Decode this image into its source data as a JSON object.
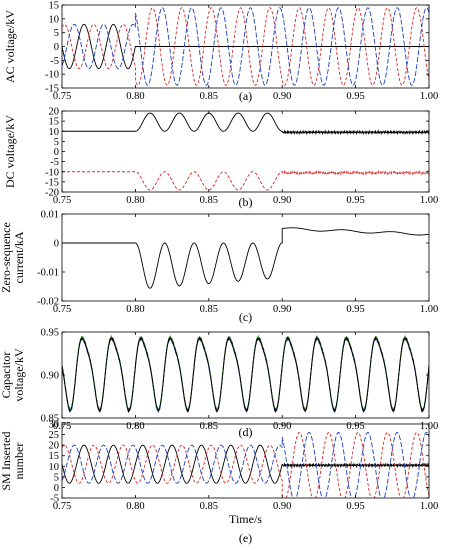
{
  "chart_data": [
    {
      "id": "a",
      "type": "line",
      "ylabel": "AC voltage/kV",
      "panel_label": "(a)",
      "xlim": [
        0.75,
        1.0
      ],
      "ylim": [
        -15,
        15
      ],
      "yticks": [
        -15,
        -10,
        -5,
        0,
        5,
        10,
        15
      ],
      "xticks": [
        0.75,
        0.8,
        0.85,
        0.9,
        0.95,
        1.0
      ],
      "xtick_labels": [
        "0.75",
        "0.80",
        "0.85",
        "0.90",
        "0.95",
        "1.00"
      ],
      "series": [
        {
          "color": "#000000",
          "dash": "solid",
          "segments": [
            {
              "kind": "sine",
              "t0": 0.75,
              "t1": 0.8,
              "amp": 8,
              "freq": 50,
              "phase_deg": 0
            },
            {
              "kind": "const",
              "t0": 0.8,
              "t1": 1.0,
              "value": 0
            }
          ]
        },
        {
          "color": "#d62728",
          "dash": "3,2",
          "segments": [
            {
              "kind": "sine",
              "t0": 0.75,
              "t1": 0.8,
              "amp": 8,
              "freq": 50,
              "phase_deg": -120
            },
            {
              "kind": "sine",
              "t0": 0.8,
              "t1": 1.0,
              "amp": 14,
              "freq": 50,
              "phase_deg": -120
            }
          ]
        },
        {
          "color": "#1f3fbf",
          "dash": "5,2",
          "segments": [
            {
              "kind": "sine",
              "t0": 0.75,
              "t1": 0.8,
              "amp": 8,
              "freq": 50,
              "phase_deg": 120
            },
            {
              "kind": "sine",
              "t0": 0.8,
              "t1": 1.0,
              "amp": 14,
              "freq": 50,
              "phase_deg": 120
            }
          ]
        }
      ]
    },
    {
      "id": "b",
      "type": "line",
      "ylabel": "DC voltage/kV",
      "panel_label": "(b)",
      "xlim": [
        0.75,
        1.0
      ],
      "ylim": [
        -20,
        20
      ],
      "yticks": [
        -20,
        -15,
        -10,
        -5,
        0,
        5,
        10,
        15,
        20
      ],
      "xticks": [
        0.75,
        0.8,
        0.85,
        0.9,
        0.95,
        1.0
      ],
      "xtick_labels": [
        "0.75",
        "0.80",
        "0.85",
        "0.90",
        "0.95",
        "1.00"
      ],
      "series": [
        {
          "color": "#000000",
          "dash": "solid",
          "segments": [
            {
              "kind": "const",
              "t0": 0.75,
              "t1": 0.8,
              "value": 10
            },
            {
              "kind": "osc",
              "t0": 0.8,
              "t1": 0.9,
              "base": 10,
              "amp": 9,
              "freq": 50
            },
            {
              "kind": "ripple",
              "t0": 0.9,
              "t1": 1.0,
              "value": 9.5,
              "amp": 0.7
            }
          ]
        },
        {
          "color": "#d62728",
          "dash": "3,2",
          "segments": [
            {
              "kind": "const",
              "t0": 0.75,
              "t1": 0.8,
              "value": -10
            },
            {
              "kind": "osc",
              "t0": 0.8,
              "t1": 0.9,
              "base": -10,
              "amp": -9,
              "freq": 50
            },
            {
              "kind": "ripple",
              "t0": 0.9,
              "t1": 1.0,
              "value": -10.5,
              "amp": 0.7
            }
          ]
        }
      ]
    },
    {
      "id": "c",
      "type": "line",
      "ylabel": "Zero-sequence current/kA",
      "panel_label": "(c)",
      "xlim": [
        0.75,
        1.0
      ],
      "ylim": [
        -0.02,
        0.01
      ],
      "yticks": [
        -0.02,
        -0.01,
        0,
        0.01
      ],
      "ytick_labels": [
        "-0.02",
        "-0.01",
        "0",
        "0.01"
      ],
      "xticks": [
        0.75,
        0.8,
        0.85,
        0.9,
        0.95,
        1.0
      ],
      "xtick_labels": [
        "0.75",
        "0.80",
        "0.85",
        "0.90",
        "0.95",
        "1.00"
      ],
      "series": [
        {
          "color": "#000000",
          "dash": "solid",
          "segments": [
            {
              "kind": "const",
              "t0": 0.75,
              "t1": 0.8,
              "value": 0
            },
            {
              "kind": "decaycos",
              "t0": 0.8,
              "t1": 0.9,
              "amp0": 0.016,
              "amp1": 0.012,
              "freq": 50
            },
            {
              "kind": "settle",
              "t0": 0.9,
              "t1": 1.0,
              "v0": 0.005,
              "v1": 0.003,
              "amp": 0.0004
            }
          ]
        }
      ]
    },
    {
      "id": "d",
      "type": "line",
      "ylabel": "Capacitor voltage/kV",
      "panel_label": "(d)",
      "xlim": [
        0.75,
        1.0
      ],
      "ylim": [
        0.85,
        0.95
      ],
      "yticks": [
        0.85,
        0.9,
        0.95
      ],
      "ytick_labels": [
        "0.85",
        "0.90",
        "0.95"
      ],
      "xticks": [
        0.75,
        0.8,
        0.85,
        0.9,
        0.95,
        1.0
      ],
      "xtick_labels": [
        "0.75",
        "0.80",
        "0.85",
        "0.90",
        "0.95",
        "1.00"
      ],
      "series": [
        {
          "color": "#d62728",
          "dash": "solid",
          "segments": [
            {
              "kind": "cap",
              "t0": 0.75,
              "t1": 1.0,
              "shift": 0.0006
            }
          ]
        },
        {
          "color": "#1f3fbf",
          "dash": "solid",
          "segments": [
            {
              "kind": "cap",
              "t0": 0.75,
              "t1": 1.0,
              "shift": -0.0006
            }
          ]
        },
        {
          "color": "#2ca02c",
          "dash": "solid",
          "segments": [
            {
              "kind": "cap",
              "t0": 0.75,
              "t1": 1.0,
              "shift": 0.0012
            }
          ]
        },
        {
          "color": "#000000",
          "dash": "solid",
          "segments": [
            {
              "kind": "cap",
              "t0": 0.75,
              "t1": 1.0,
              "shift": 0
            }
          ]
        }
      ]
    },
    {
      "id": "e",
      "type": "line",
      "ylabel": "SM Inserted number",
      "xlabel": "Time/s",
      "panel_label": "(e)",
      "xlim": [
        0.75,
        1.0
      ],
      "ylim": [
        -5,
        30
      ],
      "yticks": [
        -5,
        0,
        5,
        10,
        15,
        20,
        25,
        30
      ],
      "xticks": [
        0.75,
        0.8,
        0.85,
        0.9,
        0.95,
        1.0
      ],
      "xtick_labels": [
        "0.75",
        "0.80",
        "0.85",
        "0.90",
        "0.95",
        "1.00"
      ],
      "series": [
        {
          "color": "#000000",
          "dash": "solid",
          "segments": [
            {
              "kind": "sine",
              "t0": 0.75,
              "t1": 0.9,
              "offset": 11,
              "amp": 9,
              "freq": 50,
              "phase_deg": 0
            },
            {
              "kind": "ripple",
              "t0": 0.9,
              "t1": 1.0,
              "value": 10.5,
              "amp": 0.7
            }
          ]
        },
        {
          "color": "#d62728",
          "dash": "3,2",
          "segments": [
            {
              "kind": "sine",
              "t0": 0.75,
              "t1": 0.9,
              "offset": 11,
              "amp": 9,
              "freq": 50,
              "phase_deg": -120
            },
            {
              "kind": "sine",
              "t0": 0.9,
              "t1": 1.0,
              "offset": 10,
              "amp": 16,
              "freq": 50,
              "phase_deg": -120
            }
          ]
        },
        {
          "color": "#1f3fbf",
          "dash": "5,2",
          "segments": [
            {
              "kind": "sine",
              "t0": 0.75,
              "t1": 0.9,
              "offset": 11,
              "amp": 9,
              "freq": 50,
              "phase_deg": 120
            },
            {
              "kind": "sine",
              "t0": 0.9,
              "t1": 1.0,
              "offset": 10,
              "amp": 16,
              "freq": 50,
              "phase_deg": 120
            }
          ]
        }
      ]
    }
  ]
}
